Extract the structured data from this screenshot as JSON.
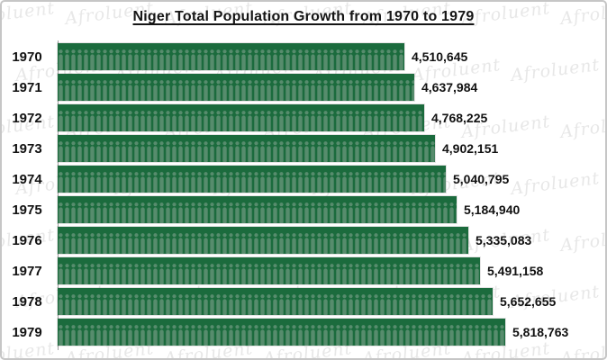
{
  "title": "Niger Total Population Growth from 1970 to 1979",
  "watermark": {
    "text": "Afroluent"
  },
  "chart_data": {
    "type": "bar",
    "orientation": "horizontal",
    "title": "Niger Total Population Growth from 1970 to 1979",
    "categories": [
      "1970",
      "1971",
      "1972",
      "1973",
      "1974",
      "1975",
      "1976",
      "1977",
      "1978",
      "1979"
    ],
    "values": [
      4510645,
      4637984,
      4768225,
      4902151,
      5040795,
      5184940,
      5335083,
      5491158,
      5652655,
      5818763
    ],
    "value_labels": [
      "4,510,645",
      "4,637,984",
      "4,768,225",
      "4,902,151",
      "5,040,795",
      "5,184,940",
      "5,335,083",
      "5,491,158",
      "5,652,655",
      "5,818,763"
    ],
    "xlabel": "",
    "ylabel": "",
    "xlim": [
      0,
      5900000
    ],
    "grid": false,
    "legend": false,
    "data_labels": "outside-end",
    "bar_color": "#1B6B3D",
    "bar_pattern_icon": "person-icon",
    "bar_pattern_color": "#5F9174",
    "axis_line_color": "#9f9f9f",
    "text_color": "#111111"
  }
}
